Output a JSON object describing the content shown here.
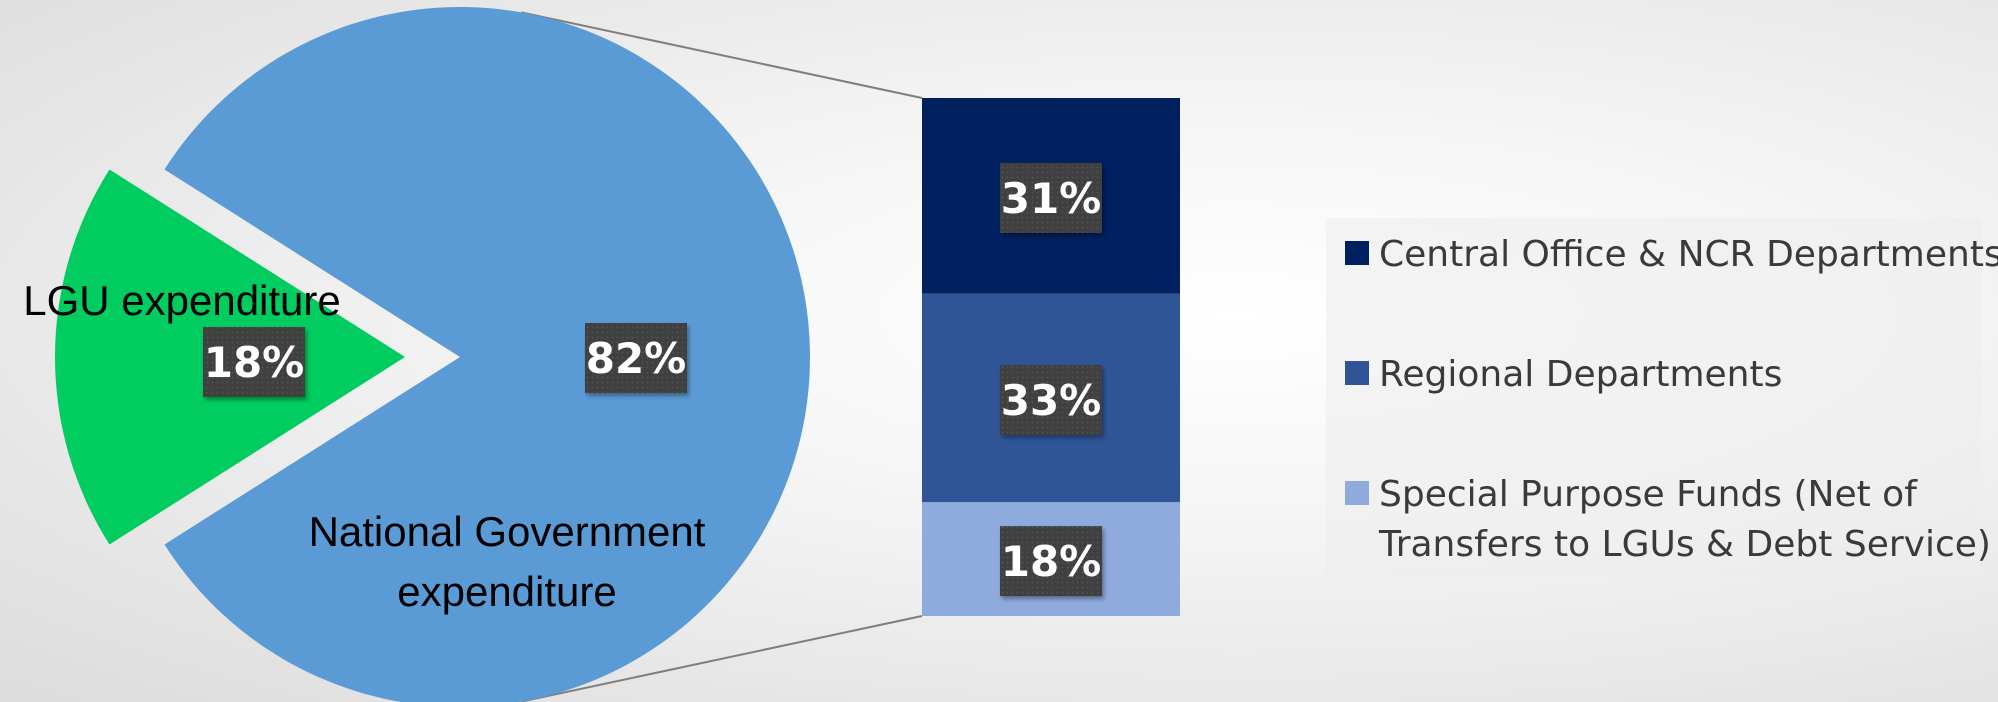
{
  "chart_data": {
    "type": "pie",
    "subtype": "bar-of-pie",
    "pie": {
      "slices": [
        {
          "label_lines": [
            "LGU expenditure"
          ],
          "value": 18,
          "display": "18%",
          "color": "#00cc5f",
          "exploded": true
        },
        {
          "label_lines": [
            "National Government",
            "expenditure"
          ],
          "value": 82,
          "display": "82%",
          "color": "#5b9bd5",
          "exploded": false
        }
      ]
    },
    "bar": {
      "breakdown_of": "National Government expenditure",
      "segments": [
        {
          "name": "Central Office & NCR Departments",
          "value": 31,
          "display": "31%",
          "color": "#002060"
        },
        {
          "name": "Regional Departments",
          "value": 33,
          "display": "33%",
          "color": "#2f5597"
        },
        {
          "name": "Special Purpose Funds (Net of Transfers to LGUs & Debt Service)",
          "name_lines": [
            "Special Purpose Funds (Net of",
            "Transfers to LGUs & Debt Service)"
          ],
          "value": 18,
          "display": "18%",
          "color": "#8faadc"
        }
      ]
    },
    "legend": {
      "position": "right"
    }
  }
}
